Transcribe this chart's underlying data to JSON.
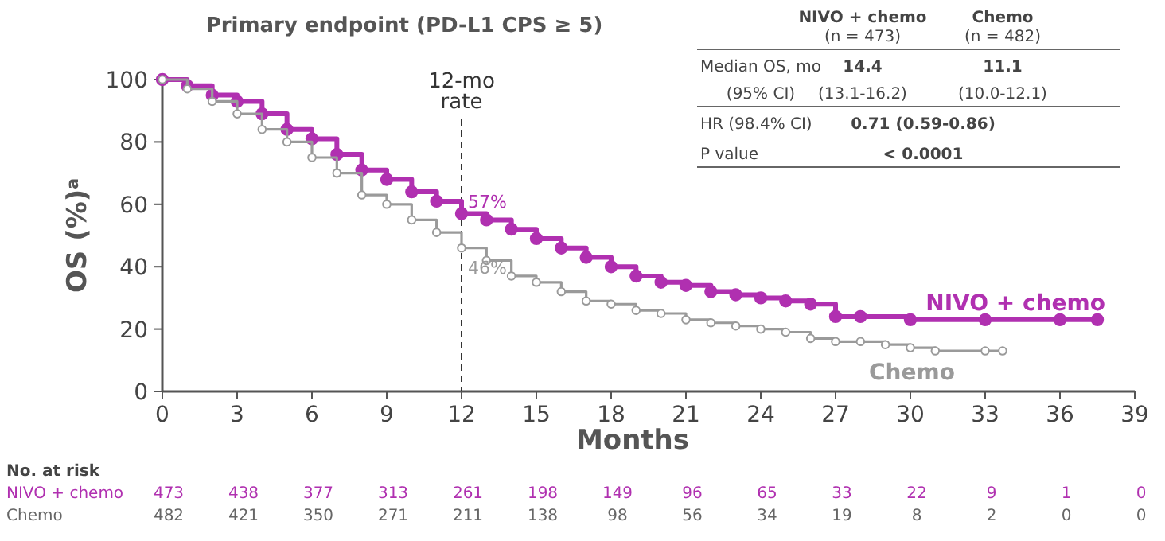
{
  "chart_data": {
    "type": "step",
    "title": "Primary endpoint (PD-L1 CPS ≥ 5)",
    "xlabel": "Months",
    "ylabel": "OS (%)$^{a}$",
    "xlim": [
      0,
      39
    ],
    "xticks": [
      0,
      3,
      6,
      9,
      12,
      15,
      18,
      21,
      24,
      27,
      30,
      33,
      36,
      39
    ],
    "ylim": [
      0,
      100
    ],
    "yticks": [
      0,
      20,
      40,
      60,
      80,
      100
    ],
    "marker": "circle",
    "series": [
      {
        "name": "NIVO + chemo",
        "color": "#b030b0",
        "x": [
          0,
          1,
          2,
          3,
          4,
          5,
          6,
          7,
          8,
          9,
          10,
          11,
          12,
          13,
          14,
          15,
          16,
          17,
          18,
          19,
          20,
          21,
          22,
          23,
          24,
          25,
          26,
          27,
          28,
          30,
          33,
          36,
          37.5
        ],
        "values": [
          100,
          98,
          95,
          93,
          89,
          84,
          81,
          76,
          71,
          68,
          64,
          61,
          57,
          55,
          52,
          49,
          46,
          43,
          40,
          37,
          35,
          34,
          32,
          31,
          30,
          29,
          28,
          24,
          24,
          23,
          23,
          23,
          23
        ]
      },
      {
        "name": "Chemo",
        "color": "#9a9a9a",
        "x": [
          0,
          1,
          2,
          3,
          4,
          5,
          6,
          7,
          8,
          9,
          10,
          11,
          12,
          13,
          14,
          15,
          16,
          17,
          18,
          19,
          20,
          21,
          22,
          23,
          24,
          25,
          26,
          27,
          28,
          29,
          30,
          31,
          33,
          33.7
        ],
        "values": [
          100,
          97,
          93,
          89,
          84,
          80,
          75,
          70,
          63,
          60,
          55,
          51,
          46,
          42,
          37,
          35,
          32,
          29,
          28,
          26,
          25,
          23,
          22,
          21,
          20,
          19,
          17,
          16,
          16,
          15,
          14,
          13,
          13,
          13
        ]
      }
    ],
    "ref_lines": [
      {
        "axis": "x",
        "value": 12,
        "label": "12-mo rate",
        "line_style": "dashed",
        "color": "#333333"
      }
    ],
    "annotations": [
      {
        "text": "57%",
        "x": 12,
        "y": 57
      },
      {
        "text": "46%",
        "x": 12,
        "y": 46
      },
      "NIVO + chemo",
      "(n = 473)",
      "Chemo",
      "(n = 482)",
      "Median OS, mo",
      "14.4",
      "11.1",
      "(95% CI)",
      "(13.1-16.2)",
      "(10.0-12.1)",
      "HR (98.4% CI)",
      "0.71 (0.59-0.86)",
      "P value",
      "< 0.0001",
      "No. at risk",
      "NIVO + chemo",
      "473 438 377 313 261 198 149 96 65 33 22 9 1 0",
      "Chemo",
      "482 421 350 271 211 138 98 56 34 19 8 2 0 0"
    ]
  }
}
